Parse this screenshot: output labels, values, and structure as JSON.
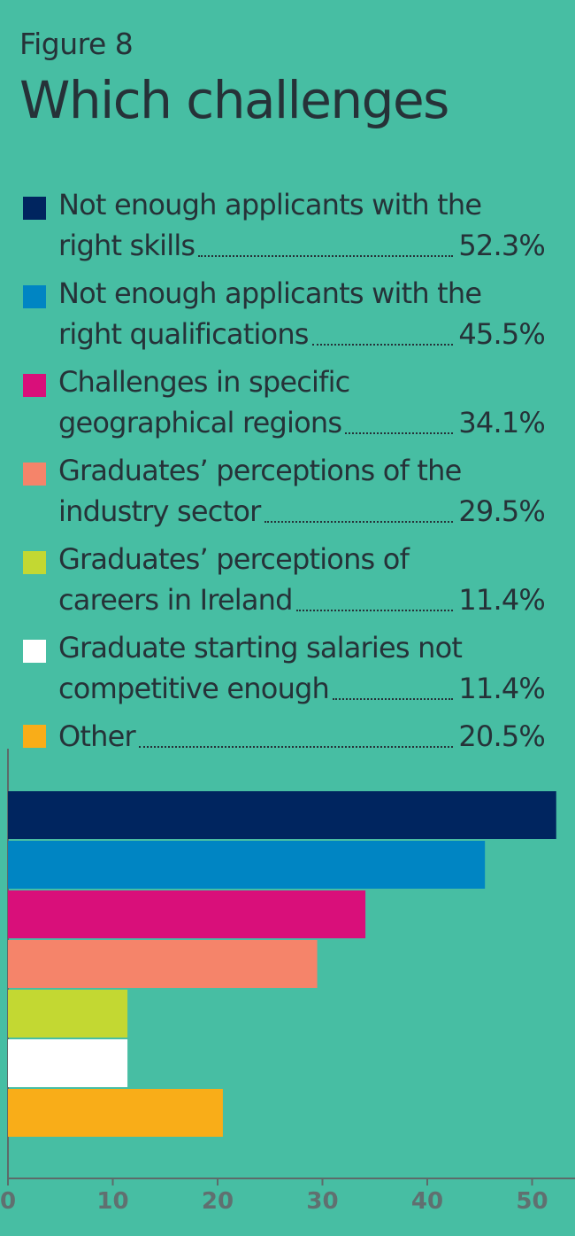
{
  "header": {
    "kicker": "Figure 8",
    "title": "Which challenges"
  },
  "legend": [
    {
      "line1": "Not enough applicants with the",
      "line2": "right skills",
      "pct": "52.3%",
      "color": "#00255f"
    },
    {
      "line1": "Not enough applicants with the",
      "line2": "right qualifications",
      "pct": "45.5%",
      "color": "#0085c3"
    },
    {
      "line1": "Challenges in specific",
      "line2": "geographical regions",
      "pct": "34.1%",
      "color": "#d90f7a"
    },
    {
      "line1": "Graduates’ perceptions of the",
      "line2": "industry sector",
      "pct": "29.5%",
      "color": "#f5846a"
    },
    {
      "line1": "Graduates’ perceptions of",
      "line2": "careers in Ireland",
      "pct": "11.4%",
      "color": "#c3d832"
    },
    {
      "line1": "Graduate starting salaries not",
      "line2": "competitive enough",
      "pct": "11.4%",
      "color": "#ffffff"
    },
    {
      "line1": "",
      "line2": "Other",
      "pct": "20.5%",
      "color": "#f9ad18"
    }
  ],
  "chart_data": {
    "type": "bar",
    "orientation": "horizontal",
    "categories": [
      "Not enough applicants with the right skills",
      "Not enough applicants with the right qualifications",
      "Challenges in specific geographical regions",
      "Graduates’ perceptions of the industry sector",
      "Graduates’ perceptions of careers in Ireland",
      "Graduate starting salaries not competitive enough",
      "Other"
    ],
    "values": [
      52.3,
      45.5,
      34.1,
      29.5,
      11.4,
      11.4,
      20.5
    ],
    "colors": [
      "#00255f",
      "#0085c3",
      "#d90f7a",
      "#f5846a",
      "#c3d832",
      "#ffffff",
      "#f9ad18"
    ],
    "xlim": [
      0,
      54
    ],
    "xticks": [
      0,
      10,
      20,
      30,
      40,
      50
    ],
    "xlabel": "",
    "ylabel": "",
    "grid": false
  }
}
